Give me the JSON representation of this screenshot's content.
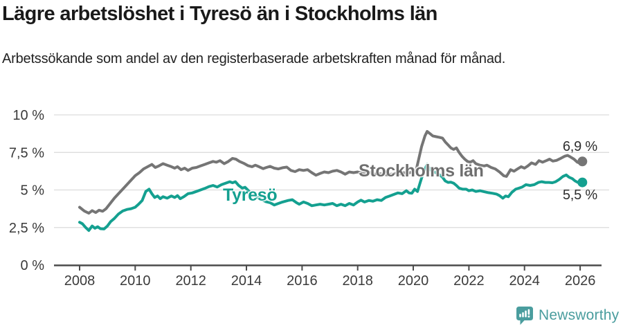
{
  "header": {
    "title": "Lägre arbetslöshet i Tyresö än i Stockholms län",
    "subtitle": "Arbetssökande som andel av den registerbaserade arbetskraften månad för månad."
  },
  "branding": {
    "logo_text": "Newsworthy",
    "logo_icon": "bar-chart-speech-bubble-icon",
    "logo_color": "#4a9d9e"
  },
  "chart_data": {
    "type": "line",
    "title": "Lägre arbetslöshet i Tyresö än i Stockholms län",
    "xlabel": "",
    "ylabel": "",
    "x_unit": "year (monthly observations)",
    "xlim": [
      2008,
      2026.3
    ],
    "ylim": [
      0,
      10
    ],
    "grid": true,
    "grid_color": "#dcdcdc",
    "axis_color": "#4a4a4a",
    "tick_label_color": "#3a3a3a",
    "legend_position": "inline-labels",
    "y_ticks": [
      {
        "value": 0,
        "label": "0 %"
      },
      {
        "value": 2.5,
        "label": "2,5 %"
      },
      {
        "value": 5,
        "label": "5 %"
      },
      {
        "value": 7.5,
        "label": "7,5 %"
      },
      {
        "value": 10,
        "label": "10 %"
      }
    ],
    "x_ticks": [
      {
        "value": 2008,
        "label": "2008"
      },
      {
        "value": 2010,
        "label": "2010"
      },
      {
        "value": 2012,
        "label": "2012"
      },
      {
        "value": 2014,
        "label": "2014"
      },
      {
        "value": 2016,
        "label": "2016"
      },
      {
        "value": 2018,
        "label": "2018"
      },
      {
        "value": 2020,
        "label": "2020"
      },
      {
        "value": 2022,
        "label": "2022"
      },
      {
        "value": 2024,
        "label": "2024"
      },
      {
        "value": 2026,
        "label": "2026"
      }
    ],
    "series": [
      {
        "name": "Stockholms län",
        "color": "#757575",
        "end_label": "6,9 %",
        "last_value": 6.9,
        "points": [
          [
            2008,
            3.85
          ],
          [
            2008.17,
            3.6
          ],
          [
            2008.33,
            3.45
          ],
          [
            2008.45,
            3.62
          ],
          [
            2008.58,
            3.5
          ],
          [
            2008.7,
            3.65
          ],
          [
            2008.83,
            3.58
          ],
          [
            2008.95,
            3.75
          ],
          [
            2009.1,
            4.1
          ],
          [
            2009.25,
            4.45
          ],
          [
            2009.4,
            4.75
          ],
          [
            2009.55,
            5.05
          ],
          [
            2009.7,
            5.35
          ],
          [
            2009.85,
            5.65
          ],
          [
            2010,
            5.95
          ],
          [
            2010.15,
            6.15
          ],
          [
            2010.3,
            6.4
          ],
          [
            2010.45,
            6.55
          ],
          [
            2010.6,
            6.7
          ],
          [
            2010.72,
            6.5
          ],
          [
            2010.85,
            6.6
          ],
          [
            2011,
            6.75
          ],
          [
            2011.15,
            6.65
          ],
          [
            2011.3,
            6.55
          ],
          [
            2011.42,
            6.45
          ],
          [
            2011.52,
            6.55
          ],
          [
            2011.65,
            6.35
          ],
          [
            2011.78,
            6.45
          ],
          [
            2011.9,
            6.3
          ],
          [
            2012.05,
            6.45
          ],
          [
            2012.2,
            6.5
          ],
          [
            2012.35,
            6.6
          ],
          [
            2012.5,
            6.7
          ],
          [
            2012.65,
            6.8
          ],
          [
            2012.8,
            6.9
          ],
          [
            2012.92,
            6.85
          ],
          [
            2013.05,
            6.95
          ],
          [
            2013.2,
            6.75
          ],
          [
            2013.35,
            6.9
          ],
          [
            2013.5,
            7.1
          ],
          [
            2013.62,
            7.05
          ],
          [
            2013.75,
            6.9
          ],
          [
            2013.9,
            6.78
          ],
          [
            2014.05,
            6.62
          ],
          [
            2014.2,
            6.55
          ],
          [
            2014.32,
            6.65
          ],
          [
            2014.45,
            6.55
          ],
          [
            2014.6,
            6.42
          ],
          [
            2014.72,
            6.5
          ],
          [
            2014.85,
            6.57
          ],
          [
            2015,
            6.45
          ],
          [
            2015.15,
            6.4
          ],
          [
            2015.3,
            6.48
          ],
          [
            2015.45,
            6.52
          ],
          [
            2015.6,
            6.3
          ],
          [
            2015.75,
            6.22
          ],
          [
            2015.9,
            6.35
          ],
          [
            2016.05,
            6.3
          ],
          [
            2016.2,
            6.35
          ],
          [
            2016.35,
            6.15
          ],
          [
            2016.5,
            5.98
          ],
          [
            2016.65,
            6.1
          ],
          [
            2016.8,
            6.2
          ],
          [
            2016.95,
            6.15
          ],
          [
            2017.1,
            6.25
          ],
          [
            2017.25,
            6.3
          ],
          [
            2017.4,
            6.2
          ],
          [
            2017.55,
            6.05
          ],
          [
            2017.7,
            6.2
          ],
          [
            2017.85,
            6.15
          ],
          [
            2018,
            6.2
          ],
          [
            2018.15,
            6.12
          ],
          [
            2018.3,
            6.08
          ],
          [
            2018.45,
            6.15
          ],
          [
            2018.6,
            6.05
          ],
          [
            2018.75,
            6.1
          ],
          [
            2018.9,
            6.05
          ],
          [
            2019.05,
            6
          ],
          [
            2019.2,
            6.05
          ],
          [
            2019.35,
            6.1
          ],
          [
            2019.5,
            6.05
          ],
          [
            2019.65,
            6.15
          ],
          [
            2019.8,
            6.1
          ],
          [
            2019.95,
            6.2
          ],
          [
            2020.1,
            6.3
          ],
          [
            2020.2,
            7.1
          ],
          [
            2020.3,
            7.9
          ],
          [
            2020.42,
            8.6
          ],
          [
            2020.5,
            8.9
          ],
          [
            2020.6,
            8.75
          ],
          [
            2020.7,
            8.6
          ],
          [
            2020.82,
            8.55
          ],
          [
            2020.95,
            8.5
          ],
          [
            2021.05,
            8.45
          ],
          [
            2021.15,
            8.2
          ],
          [
            2021.25,
            8
          ],
          [
            2021.35,
            7.8
          ],
          [
            2021.45,
            7.7
          ],
          [
            2021.55,
            7.8
          ],
          [
            2021.65,
            7.5
          ],
          [
            2021.75,
            7.25
          ],
          [
            2021.85,
            7.05
          ],
          [
            2021.95,
            6.9
          ],
          [
            2022.05,
            6.85
          ],
          [
            2022.15,
            6.95
          ],
          [
            2022.25,
            6.75
          ],
          [
            2022.4,
            6.65
          ],
          [
            2022.55,
            6.6
          ],
          [
            2022.65,
            6.65
          ],
          [
            2022.8,
            6.5
          ],
          [
            2022.95,
            6.4
          ],
          [
            2023.1,
            6.2
          ],
          [
            2023.25,
            5.95
          ],
          [
            2023.35,
            5.9
          ],
          [
            2023.5,
            6.35
          ],
          [
            2023.62,
            6.25
          ],
          [
            2023.75,
            6.4
          ],
          [
            2023.88,
            6.55
          ],
          [
            2024,
            6.45
          ],
          [
            2024.12,
            6.6
          ],
          [
            2024.25,
            6.8
          ],
          [
            2024.4,
            6.7
          ],
          [
            2024.52,
            6.95
          ],
          [
            2024.65,
            6.85
          ],
          [
            2024.78,
            6.95
          ],
          [
            2024.9,
            7.05
          ],
          [
            2025.02,
            6.92
          ],
          [
            2025.15,
            6.97
          ],
          [
            2025.3,
            7.1
          ],
          [
            2025.45,
            7.25
          ],
          [
            2025.55,
            7.3
          ],
          [
            2025.65,
            7.2
          ],
          [
            2025.78,
            7.05
          ],
          [
            2025.9,
            6.85
          ],
          [
            2026,
            6.78
          ],
          [
            2026.08,
            6.9
          ]
        ]
      },
      {
        "name": "Tyresö",
        "color": "#14a090",
        "end_label": "5,5 %",
        "last_value": 5.5,
        "points": [
          [
            2008,
            2.85
          ],
          [
            2008.1,
            2.75
          ],
          [
            2008.22,
            2.5
          ],
          [
            2008.33,
            2.3
          ],
          [
            2008.45,
            2.6
          ],
          [
            2008.55,
            2.45
          ],
          [
            2008.65,
            2.55
          ],
          [
            2008.75,
            2.42
          ],
          [
            2008.88,
            2.4
          ],
          [
            2009,
            2.6
          ],
          [
            2009.12,
            2.9
          ],
          [
            2009.25,
            3.1
          ],
          [
            2009.4,
            3.4
          ],
          [
            2009.55,
            3.6
          ],
          [
            2009.7,
            3.7
          ],
          [
            2009.85,
            3.75
          ],
          [
            2010,
            3.85
          ],
          [
            2010.12,
            4.05
          ],
          [
            2010.25,
            4.3
          ],
          [
            2010.38,
            4.9
          ],
          [
            2010.5,
            5.05
          ],
          [
            2010.6,
            4.75
          ],
          [
            2010.7,
            4.5
          ],
          [
            2010.8,
            4.6
          ],
          [
            2010.9,
            4.42
          ],
          [
            2011,
            4.55
          ],
          [
            2011.15,
            4.45
          ],
          [
            2011.3,
            4.6
          ],
          [
            2011.42,
            4.5
          ],
          [
            2011.52,
            4.62
          ],
          [
            2011.62,
            4.42
          ],
          [
            2011.75,
            4.55
          ],
          [
            2011.9,
            4.75
          ],
          [
            2012.05,
            4.8
          ],
          [
            2012.2,
            4.9
          ],
          [
            2012.35,
            5
          ],
          [
            2012.5,
            5.1
          ],
          [
            2012.65,
            5.22
          ],
          [
            2012.8,
            5.3
          ],
          [
            2012.95,
            5.2
          ],
          [
            2013.1,
            5.35
          ],
          [
            2013.25,
            5.45
          ],
          [
            2013.4,
            5.55
          ],
          [
            2013.5,
            5.48
          ],
          [
            2013.6,
            5.55
          ],
          [
            2013.72,
            5.3
          ],
          [
            2013.85,
            5.12
          ],
          [
            2013.95,
            5.18
          ],
          [
            2014.1,
            4.9
          ],
          [
            2014.25,
            4.7
          ],
          [
            2014.4,
            4.5
          ],
          [
            2014.55,
            4.35
          ],
          [
            2014.7,
            4.22
          ],
          [
            2014.85,
            4.15
          ],
          [
            2015,
            4
          ],
          [
            2015.15,
            4.1
          ],
          [
            2015.3,
            4.2
          ],
          [
            2015.5,
            4.3
          ],
          [
            2015.65,
            4.35
          ],
          [
            2015.8,
            4.15
          ],
          [
            2015.9,
            4.05
          ],
          [
            2016.05,
            4.2
          ],
          [
            2016.2,
            4.1
          ],
          [
            2016.35,
            3.95
          ],
          [
            2016.5,
            4
          ],
          [
            2016.65,
            4.05
          ],
          [
            2016.8,
            4
          ],
          [
            2016.95,
            4.05
          ],
          [
            2017.1,
            4.1
          ],
          [
            2017.25,
            3.95
          ],
          [
            2017.4,
            4.05
          ],
          [
            2017.55,
            3.95
          ],
          [
            2017.7,
            4.1
          ],
          [
            2017.85,
            4
          ],
          [
            2018,
            4.2
          ],
          [
            2018.12,
            4.32
          ],
          [
            2018.25,
            4.2
          ],
          [
            2018.4,
            4.3
          ],
          [
            2018.55,
            4.25
          ],
          [
            2018.7,
            4.35
          ],
          [
            2018.85,
            4.3
          ],
          [
            2019,
            4.5
          ],
          [
            2019.15,
            4.6
          ],
          [
            2019.3,
            4.7
          ],
          [
            2019.45,
            4.8
          ],
          [
            2019.6,
            4.75
          ],
          [
            2019.75,
            4.95
          ],
          [
            2019.85,
            4.8
          ],
          [
            2019.95,
            4.78
          ],
          [
            2020.05,
            5.05
          ],
          [
            2020.15,
            4.9
          ],
          [
            2020.25,
            5.5
          ],
          [
            2020.35,
            6.1
          ],
          [
            2020.5,
            6.7
          ],
          [
            2020.6,
            6.35
          ],
          [
            2020.72,
            6.25
          ],
          [
            2020.85,
            6.1
          ],
          [
            2020.95,
            6
          ],
          [
            2021.05,
            5.85
          ],
          [
            2021.15,
            5.6
          ],
          [
            2021.25,
            5.5
          ],
          [
            2021.35,
            5.52
          ],
          [
            2021.45,
            5.45
          ],
          [
            2021.55,
            5.3
          ],
          [
            2021.65,
            5.12
          ],
          [
            2021.78,
            5.05
          ],
          [
            2021.9,
            5.05
          ],
          [
            2022,
            4.95
          ],
          [
            2022.12,
            5
          ],
          [
            2022.25,
            4.9
          ],
          [
            2022.4,
            4.95
          ],
          [
            2022.55,
            4.88
          ],
          [
            2022.7,
            4.82
          ],
          [
            2022.85,
            4.78
          ],
          [
            2023,
            4.72
          ],
          [
            2023.1,
            4.62
          ],
          [
            2023.22,
            4.45
          ],
          [
            2023.32,
            4.6
          ],
          [
            2023.42,
            4.55
          ],
          [
            2023.55,
            4.85
          ],
          [
            2023.68,
            5.05
          ],
          [
            2023.8,
            5.12
          ],
          [
            2023.92,
            5.2
          ],
          [
            2024.05,
            5.35
          ],
          [
            2024.2,
            5.3
          ],
          [
            2024.35,
            5.35
          ],
          [
            2024.5,
            5.5
          ],
          [
            2024.62,
            5.55
          ],
          [
            2024.75,
            5.5
          ],
          [
            2024.88,
            5.5
          ],
          [
            2025,
            5.48
          ],
          [
            2025.12,
            5.55
          ],
          [
            2025.25,
            5.7
          ],
          [
            2025.38,
            5.9
          ],
          [
            2025.5,
            6
          ],
          [
            2025.6,
            5.85
          ],
          [
            2025.72,
            5.75
          ],
          [
            2025.82,
            5.6
          ],
          [
            2025.92,
            5.5
          ],
          [
            2026,
            5.45
          ],
          [
            2026.08,
            5.5
          ]
        ]
      }
    ]
  }
}
